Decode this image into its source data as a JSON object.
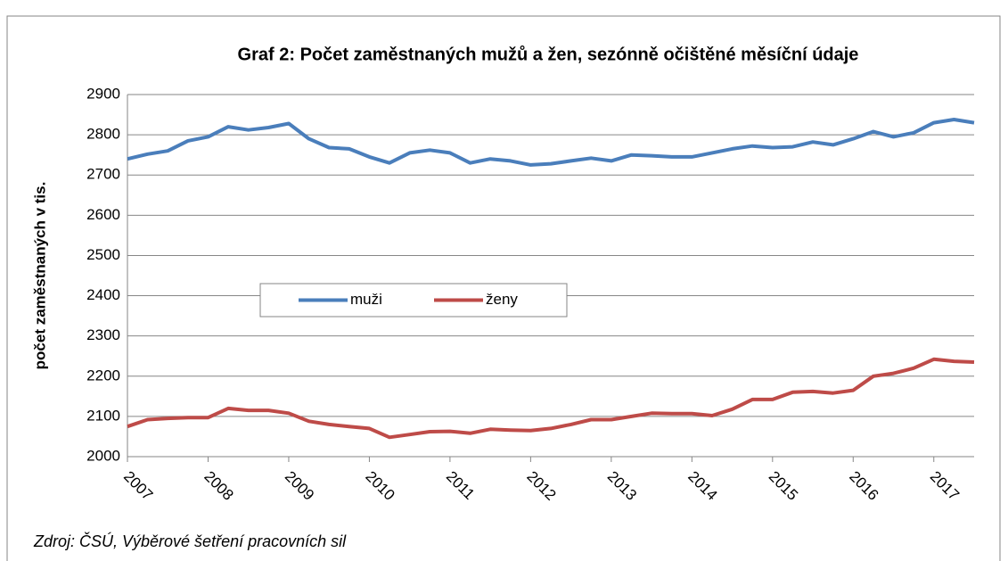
{
  "chart_data": {
    "type": "line",
    "title": "Graf 2: Počet zaměstnaných mužů a žen, sezónně očištěné měsíční údaje",
    "y_label": "počet zaměstnaných v tis.",
    "source": "Zdroj: ČSÚ, Výběrové šetření pracovních sil",
    "x": [
      2007,
      2007.25,
      2007.5,
      2007.75,
      2008,
      2008.25,
      2008.5,
      2008.75,
      2009,
      2009.25,
      2009.5,
      2009.75,
      2010,
      2010.25,
      2010.5,
      2010.75,
      2011,
      2011.25,
      2011.5,
      2011.75,
      2012,
      2012.25,
      2012.5,
      2012.75,
      2013,
      2013.25,
      2013.5,
      2013.75,
      2014,
      2014.25,
      2014.5,
      2014.75,
      2015,
      2015.25,
      2015.5,
      2015.75,
      2016,
      2016.25,
      2016.5,
      2016.75,
      2017,
      2017.25,
      2017.5
    ],
    "series": [
      {
        "name": "muži",
        "color": "#4a7ebb",
        "values": [
          2740,
          2752,
          2760,
          2785,
          2795,
          2820,
          2812,
          2818,
          2828,
          2790,
          2768,
          2765,
          2745,
          2730,
          2755,
          2762,
          2755,
          2730,
          2740,
          2735,
          2725,
          2728,
          2735,
          2742,
          2735,
          2750,
          2748,
          2745,
          2745,
          2755,
          2765,
          2772,
          2768,
          2770,
          2782,
          2775,
          2790,
          2808,
          2795,
          2805,
          2830,
          2838,
          2830
        ]
      },
      {
        "name": "ženy",
        "color": "#be4b48",
        "values": [
          2075,
          2092,
          2095,
          2097,
          2097,
          2120,
          2115,
          2115,
          2108,
          2088,
          2080,
          2075,
          2070,
          2048,
          2055,
          2062,
          2063,
          2058,
          2068,
          2066,
          2065,
          2070,
          2080,
          2092,
          2092,
          2100,
          2108,
          2107,
          2107,
          2102,
          2118,
          2142,
          2142,
          2160,
          2162,
          2158,
          2165,
          2200,
          2207,
          2220,
          2242,
          2237,
          2235
        ]
      }
    ],
    "xlim": [
      2007,
      2017.5
    ],
    "xticks": [
      2007,
      2008,
      2009,
      2010,
      2011,
      2012,
      2013,
      2014,
      2015,
      2016,
      2017
    ],
    "ylim": [
      2000,
      2900
    ],
    "yticks": [
      2000,
      2100,
      2200,
      2300,
      2400,
      2500,
      2600,
      2700,
      2800,
      2900
    ],
    "grid": true,
    "legend": "center"
  }
}
